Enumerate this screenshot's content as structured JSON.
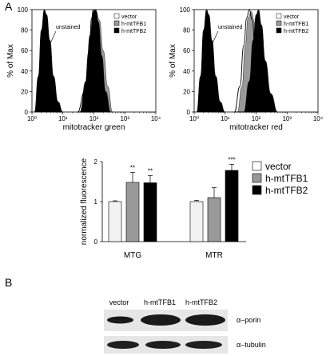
{
  "panels": {
    "a_label": "A",
    "b_label": "B"
  },
  "legend_small": [
    "vector",
    "h-mtTFB1",
    "h-mtTFB2"
  ],
  "chart_data": [
    {
      "type": "area",
      "ylabel": "% of Max",
      "xlabel": "mitotracker green",
      "xscale": "log",
      "xlim": [
        1,
        10000
      ],
      "ylim": [
        0,
        100
      ],
      "xticks": [
        "10⁰",
        "10¹",
        "10²",
        "10³",
        "10⁴"
      ],
      "yticks": [
        "0",
        "20",
        "40",
        "60",
        "80",
        "100"
      ],
      "annotation": "unstained",
      "series": [
        {
          "name": "vector",
          "color": "#ffffff",
          "x": [
            30,
            50,
            70,
            85,
            95,
            110,
            130,
            160,
            200
          ],
          "y": [
            0,
            20,
            60,
            92,
            100,
            95,
            60,
            20,
            0
          ]
        },
        {
          "name": "h-mtTFB1",
          "color": "#999999",
          "x": [
            40,
            60,
            80,
            100,
            120,
            150,
            200,
            280,
            400
          ],
          "y": [
            0,
            25,
            70,
            95,
            98,
            90,
            60,
            25,
            0
          ]
        },
        {
          "name": "h-mtTFB2",
          "color": "#000000",
          "x": [
            35,
            55,
            75,
            95,
            115,
            140,
            180,
            240,
            350
          ],
          "y": [
            0,
            30,
            75,
            98,
            100,
            88,
            55,
            20,
            0
          ]
        },
        {
          "name": "unstained",
          "color": "#000000",
          "x": [
            1.2,
            1.6,
            2.0,
            2.5,
            3.0,
            3.8,
            5.0,
            7.0,
            10
          ],
          "y": [
            0,
            35,
            80,
            100,
            95,
            70,
            35,
            10,
            0
          ]
        }
      ]
    },
    {
      "type": "area",
      "ylabel": "% of Max",
      "xlabel": "mitotracker red",
      "xscale": "log",
      "xlim": [
        1,
        10000
      ],
      "ylim": [
        0,
        100
      ],
      "xticks": [
        "10⁰",
        "10¹",
        "10²",
        "10³",
        "10⁴"
      ],
      "yticks": [
        "0",
        "20",
        "40",
        "60",
        "80",
        "100"
      ],
      "annotation": "unstained",
      "series": [
        {
          "name": "vector",
          "color": "#ffffff",
          "x": [
            20,
            30,
            40,
            50,
            60,
            75,
            95,
            130,
            180
          ],
          "y": [
            0,
            25,
            65,
            92,
            100,
            90,
            55,
            20,
            0
          ]
        },
        {
          "name": "h-mtTFB1",
          "color": "#999999",
          "x": [
            25,
            35,
            45,
            55,
            70,
            90,
            120,
            170,
            250
          ],
          "y": [
            0,
            25,
            65,
            92,
            98,
            88,
            55,
            20,
            0
          ]
        },
        {
          "name": "h-mtTFB2",
          "color": "#000000",
          "x": [
            40,
            60,
            80,
            100,
            120,
            150,
            200,
            300,
            500
          ],
          "y": [
            0,
            30,
            70,
            95,
            100,
            85,
            50,
            18,
            0
          ]
        },
        {
          "name": "unstained",
          "color": "#000000",
          "x": [
            1.2,
            1.6,
            2.0,
            2.5,
            3.0,
            3.8,
            5.0,
            7.0,
            10
          ],
          "y": [
            0,
            35,
            80,
            100,
            95,
            70,
            35,
            10,
            0
          ]
        }
      ]
    },
    {
      "type": "bar",
      "ylabel": "normalized fluorescence",
      "categories": [
        "MTG",
        "MTR"
      ],
      "ylim": [
        0,
        2
      ],
      "yticks": [
        "0",
        "1",
        "2"
      ],
      "series": [
        {
          "name": "vector",
          "color": "#f2f2f2",
          "values": [
            1.0,
            1.0
          ],
          "errors": [
            0.02,
            0.03
          ],
          "sig": [
            "",
            ""
          ]
        },
        {
          "name": "h-mtTFB1",
          "color": "#999999",
          "values": [
            1.48,
            1.1
          ],
          "errors": [
            0.25,
            0.25
          ],
          "sig": [
            "**",
            ""
          ]
        },
        {
          "name": "h-mtTFB2",
          "color": "#000000",
          "values": [
            1.47,
            1.78
          ],
          "errors": [
            0.18,
            0.15
          ],
          "sig": [
            "**",
            "***"
          ]
        }
      ]
    }
  ],
  "blot": {
    "lanes": [
      "vector",
      "h-mtTFB1",
      "h-mtTFB2"
    ],
    "rows": [
      "α–porin",
      "α–tubulin"
    ]
  }
}
